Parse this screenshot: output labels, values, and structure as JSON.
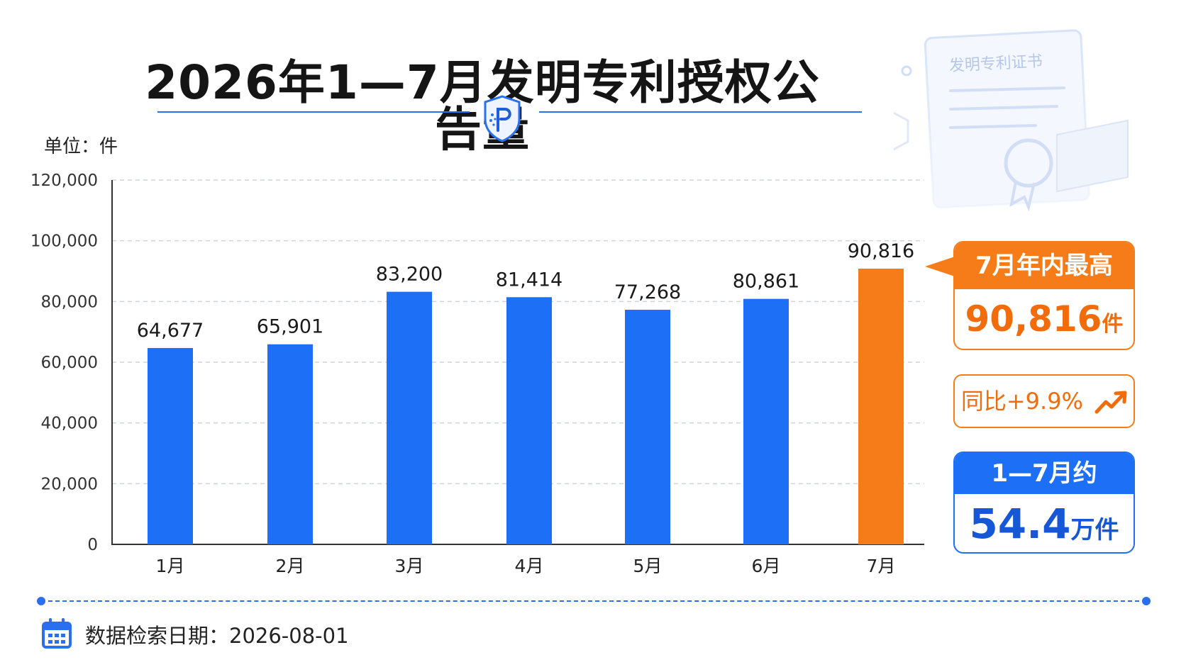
{
  "title": "2026年1—7月发明专利授权公告量",
  "unit_label": "单位：件",
  "decoration": {
    "certificate_text": "发明专利证书"
  },
  "colors": {
    "bar": "#1d6ff5",
    "highlight_bar": "#f57c18",
    "accent_blue": "#2a6ff0",
    "accent_orange": "#f57c18"
  },
  "chart_data": {
    "type": "bar",
    "title": "2026年1—7月发明专利授权公告量",
    "ylabel": "单位：件",
    "xlabel": "",
    "categories": [
      "1月",
      "2月",
      "3月",
      "4月",
      "5月",
      "6月",
      "7月"
    ],
    "values": [
      64677,
      65901,
      83200,
      81414,
      77268,
      80861,
      90816
    ],
    "value_labels": [
      "64,677",
      "65,901",
      "83,200",
      "81,414",
      "77,268",
      "80,861",
      "90,816"
    ],
    "highlight_index": 6,
    "ylim": [
      0,
      120000
    ],
    "yticks": [
      0,
      20000,
      40000,
      60000,
      80000,
      100000,
      120000
    ],
    "ytick_labels": [
      "0",
      "20,000",
      "40,000",
      "60,000",
      "80,000",
      "100,000",
      "120,000"
    ],
    "grid": true,
    "legend": "none"
  },
  "callouts": {
    "peak": {
      "header": "7月年内最高",
      "value": "90,816",
      "unit": "件"
    },
    "yoy": {
      "text": "同比+9.9%",
      "icon": "trend-up-icon"
    },
    "total": {
      "header": "1—7月约",
      "value": "54.4",
      "unit": "万件"
    }
  },
  "footer": {
    "icon": "calendar-icon",
    "retrieval_date": "数据检索日期：2026-08-01"
  }
}
